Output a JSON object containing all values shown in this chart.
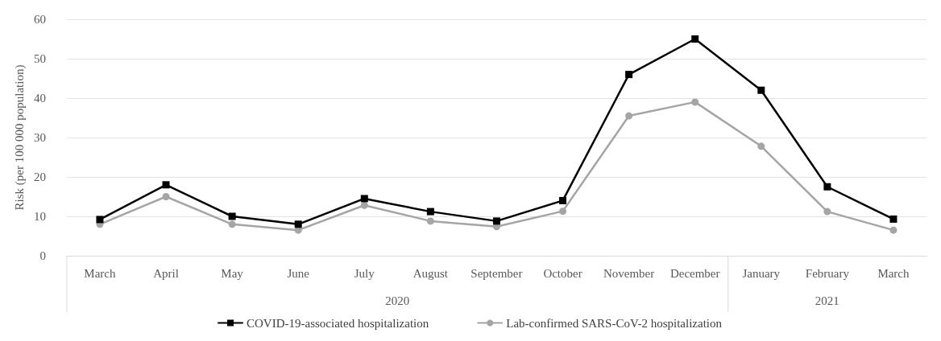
{
  "chart_data": {
    "type": "line",
    "ylabel": "Risk (per 100 000 population)",
    "categories": [
      "March",
      "April",
      "May",
      "June",
      "July",
      "August",
      "September",
      "October",
      "November",
      "December",
      "January",
      "February",
      "March"
    ],
    "series": [
      {
        "name": "COVID-19-associated hospitalization",
        "color": "#000000",
        "marker": "square",
        "values": [
          9.2,
          18,
          10,
          8,
          14.5,
          11.2,
          8.8,
          14,
          46,
          55,
          42,
          17.5,
          9.3
        ]
      },
      {
        "name": "Lab-confirmed SARS-CoV-2 hospitalization",
        "color": "#a5a5a5",
        "marker": "circle",
        "values": [
          8,
          15,
          8,
          6.5,
          12.8,
          8.8,
          7.4,
          11.3,
          35.5,
          39,
          27.8,
          11.2,
          6.5
        ]
      }
    ],
    "annotations": [
      "2020",
      "2021"
    ],
    "ylim": [
      0,
      60
    ],
    "yticks": [
      0,
      10,
      20,
      30,
      40,
      50,
      60
    ],
    "grid": "y",
    "legend": "bottom",
    "line_style": "solid"
  }
}
